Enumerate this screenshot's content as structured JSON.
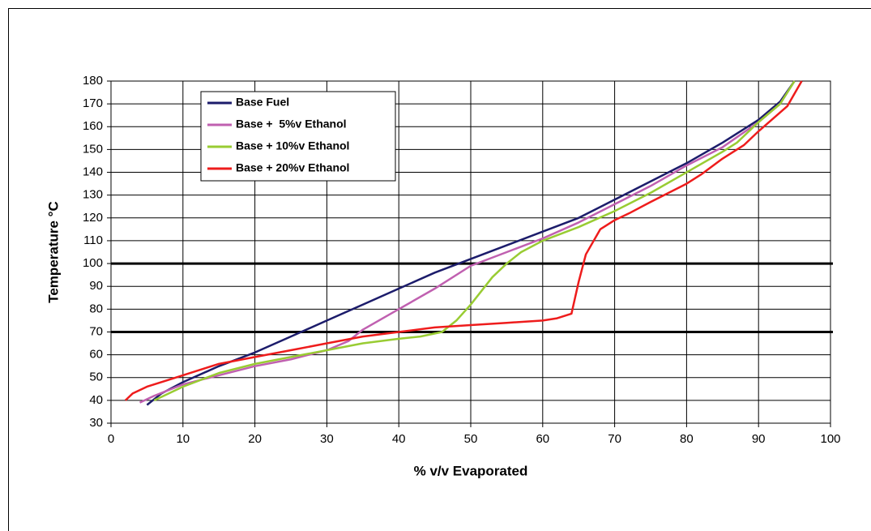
{
  "chart_data": {
    "type": "line",
    "xlabel": "% v/v Evaporated",
    "ylabel": "Temperature °C",
    "xlim": [
      0,
      100
    ],
    "xticks": [
      0,
      10,
      20,
      30,
      40,
      50,
      60,
      70,
      80,
      90,
      100
    ],
    "ylim": [
      30,
      180
    ],
    "yticks": [
      30,
      40,
      50,
      60,
      70,
      80,
      90,
      100,
      110,
      120,
      130,
      140,
      150,
      160,
      170,
      180
    ],
    "grid": true,
    "legend": "upper left",
    "hlines": [
      100,
      70
    ],
    "series": [
      {
        "name": "Base Fuel",
        "color": "#1c1c6b",
        "x": [
          5,
          7,
          10,
          15,
          20,
          25,
          30,
          35,
          40,
          45,
          50,
          55,
          60,
          65,
          70,
          75,
          80,
          85,
          90,
          93,
          95
        ],
        "values": [
          38,
          43,
          48,
          55,
          61,
          68,
          75,
          82,
          89,
          96,
          102,
          108,
          114,
          120,
          128,
          136,
          144,
          153,
          163,
          171,
          180
        ]
      },
      {
        "name": "Base +  5%v Ethanol",
        "color": "#c060b0",
        "x": [
          4,
          6,
          10,
          15,
          20,
          25,
          30,
          33,
          35,
          40,
          45,
          50,
          55,
          60,
          65,
          70,
          75,
          80,
          85,
          90,
          93,
          95
        ],
        "values": [
          39,
          42,
          47,
          51,
          55,
          58,
          62,
          66,
          71,
          80,
          89,
          99,
          105,
          111,
          118,
          126,
          134,
          143,
          151,
          162,
          170,
          180
        ]
      },
      {
        "name": "Base + 10%v Ethanol",
        "color": "#99cc33",
        "x": [
          6,
          10,
          15,
          20,
          25,
          30,
          35,
          40,
          43,
          46,
          48,
          50,
          53,
          55,
          57,
          60,
          65,
          70,
          75,
          80,
          85,
          87,
          90,
          93,
          95
        ],
        "values": [
          40,
          46,
          52,
          56,
          59,
          62,
          65,
          67,
          68,
          70,
          75,
          82,
          94,
          100,
          105,
          110,
          116,
          123,
          131,
          140,
          149,
          153,
          162,
          170,
          180
        ]
      },
      {
        "name": "Base + 20%v Ethanol",
        "color": "#ee1c1c",
        "x": [
          2,
          3,
          5,
          8,
          10,
          13,
          15,
          20,
          25,
          30,
          35,
          40,
          45,
          50,
          55,
          60,
          62,
          64,
          65,
          66,
          68,
          70,
          72,
          75,
          80,
          82,
          85,
          88,
          90,
          94,
          96
        ],
        "values": [
          40,
          43,
          46,
          49,
          51,
          54,
          56,
          59,
          62,
          65,
          68,
          70,
          72,
          73,
          74,
          75,
          76,
          78,
          92,
          104,
          115,
          119,
          122,
          127,
          135,
          139,
          146,
          152,
          158,
          169,
          180
        ]
      }
    ]
  }
}
